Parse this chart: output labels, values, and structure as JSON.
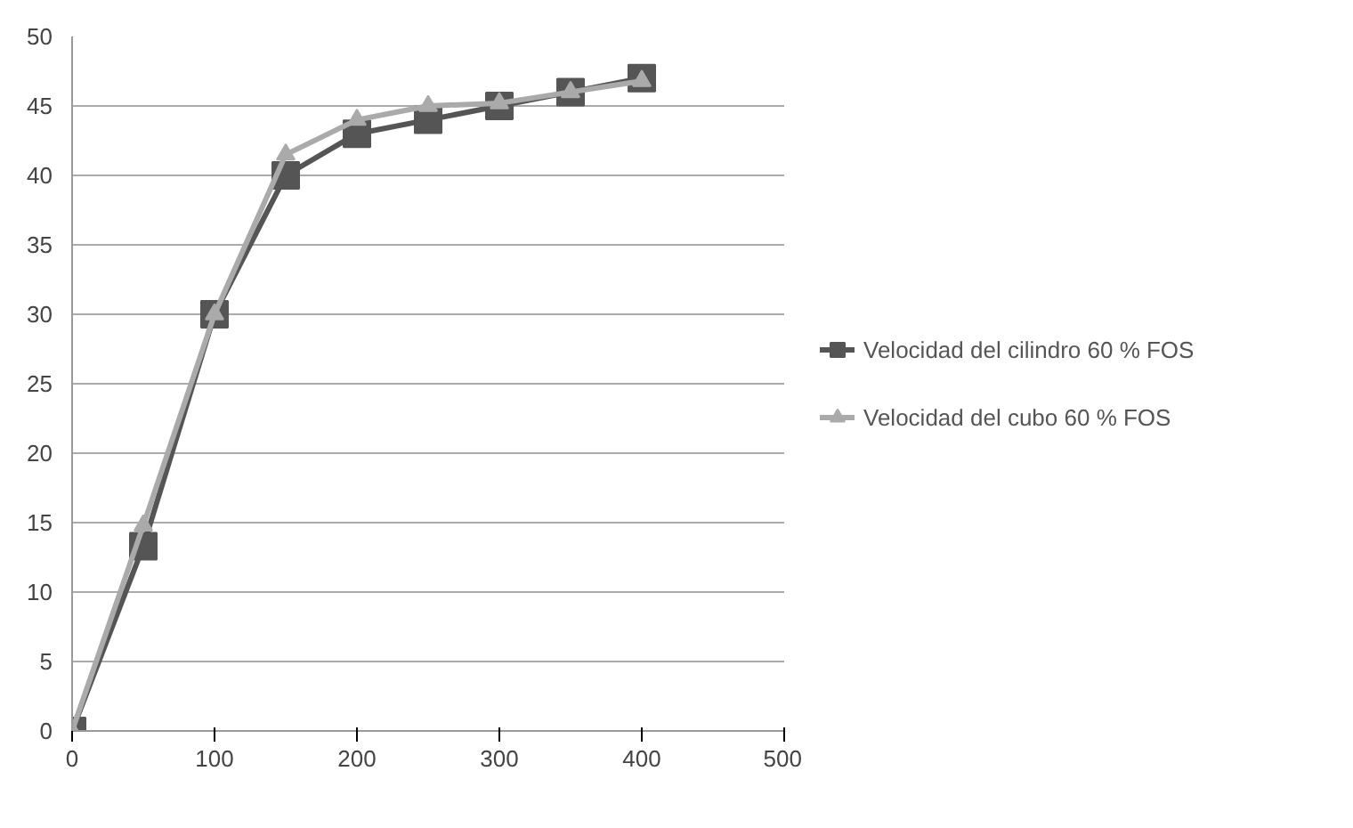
{
  "chart_data": {
    "type": "line",
    "x": [
      0,
      50,
      100,
      150,
      200,
      250,
      300,
      350,
      400
    ],
    "series": [
      {
        "name": "Velocidad del cilindro 60 % FOS",
        "color": "#555555",
        "marker": "square",
        "values": [
          0,
          13.3,
          30,
          40,
          43,
          44,
          45,
          46,
          47
        ]
      },
      {
        "name": "Velocidad del cubo 60 % FOS",
        "color": "#aaaaaa",
        "marker": "triangle",
        "values": [
          0,
          14.8,
          30,
          41.5,
          44,
          45,
          45.2,
          46,
          46.8
        ]
      }
    ],
    "xlim": [
      0,
      500
    ],
    "ylim": [
      0,
      50
    ],
    "xticks": [
      0,
      100,
      200,
      300,
      400,
      500
    ],
    "yticks": [
      0,
      5,
      10,
      15,
      20,
      25,
      30,
      35,
      40,
      45,
      50
    ],
    "grid": "y",
    "legend": "right",
    "line_style": "solid"
  }
}
